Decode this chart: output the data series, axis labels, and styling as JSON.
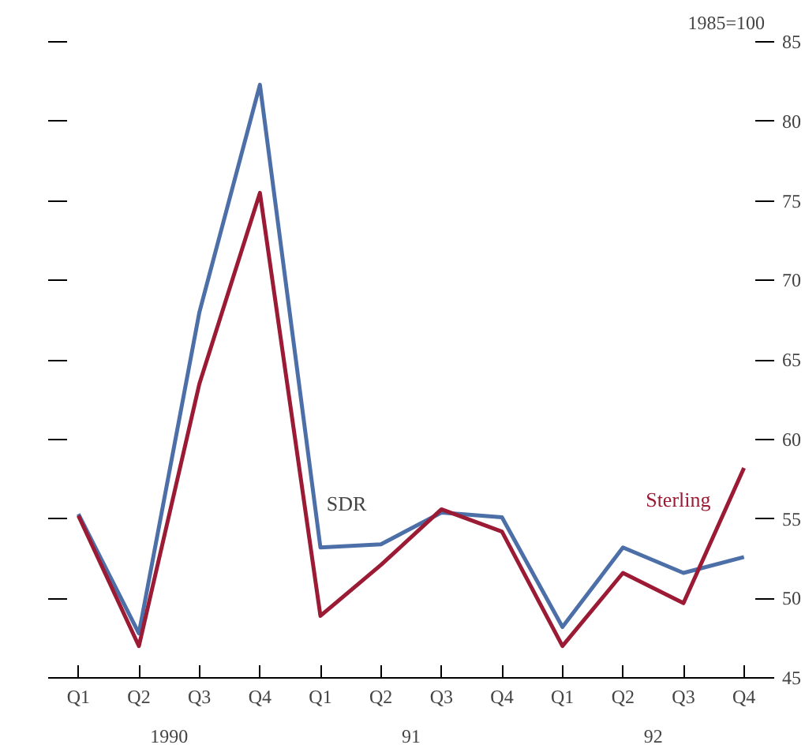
{
  "chart_data": {
    "type": "line",
    "categories": [
      "Q1",
      "Q2",
      "Q3",
      "Q4",
      "Q1",
      "Q2",
      "Q3",
      "Q4",
      "Q1",
      "Q2",
      "Q3",
      "Q4"
    ],
    "series": [
      {
        "name": "SDR",
        "color": "#4d6fa8",
        "values": [
          55.3,
          47.8,
          68.0,
          82.3,
          53.2,
          53.4,
          55.4,
          55.1,
          48.2,
          53.2,
          51.6,
          52.6
        ]
      },
      {
        "name": "Sterling",
        "color": "#9b1b35",
        "values": [
          55.2,
          47.0,
          63.5,
          75.5,
          48.9,
          52.1,
          55.6,
          54.2,
          47.0,
          51.6,
          49.7,
          58.2
        ]
      }
    ],
    "ylim": [
      45,
      85
    ],
    "yticks": [
      45,
      50,
      55,
      60,
      65,
      70,
      75,
      80,
      85
    ],
    "annotations": [
      "1985=100",
      "1990",
      "91",
      "92"
    ],
    "grid": false,
    "marker": "none",
    "line_style": "solid"
  }
}
